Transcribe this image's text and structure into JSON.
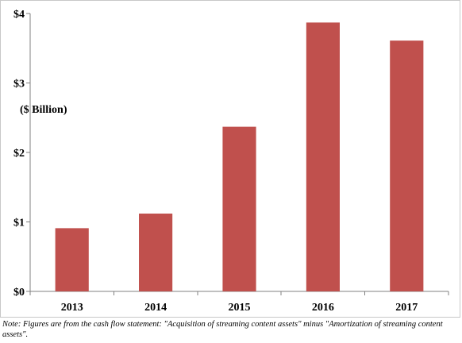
{
  "chart_data": {
    "type": "bar",
    "categories": [
      "2013",
      "2014",
      "2015",
      "2016",
      "2017"
    ],
    "values": [
      0.91,
      1.12,
      2.37,
      3.87,
      3.61
    ],
    "ylim": [
      0,
      4
    ],
    "yticks": [
      0,
      1,
      2,
      3,
      4
    ],
    "ytick_labels": [
      "$0",
      "$1",
      "$2",
      "$3",
      "$4"
    ],
    "unit_label": "($ Billion)",
    "bar_color": "#c0504d",
    "grid": false,
    "legend": "none"
  },
  "note": "Note: Figures are from the cash flow statement: \"Acquisition of streaming content assets\" minus \"Amortization of streaming content assets\"."
}
